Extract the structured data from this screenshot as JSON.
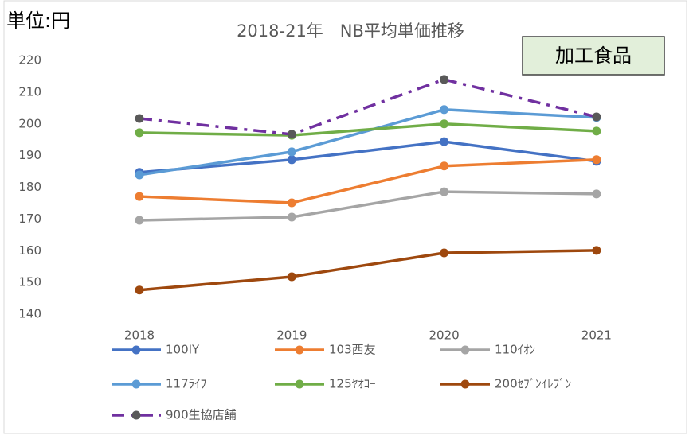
{
  "chart_data": {
    "type": "line",
    "title": "2018-21年　NB平均単価推移",
    "unit_label": "単位:円",
    "annotation": "加工食品",
    "categories": [
      "2018",
      "2019",
      "2020",
      "2021"
    ],
    "ylim": [
      140,
      220
    ],
    "yticks": [
      140,
      150,
      160,
      170,
      180,
      190,
      200,
      210,
      220
    ],
    "grid": false,
    "series": [
      {
        "name": "100IY",
        "color": "#4472c4",
        "values": [
          184.7,
          188.7,
          194.4,
          188.2
        ]
      },
      {
        "name": "103西友",
        "color": "#ed7d31",
        "values": [
          177.1,
          175.1,
          186.7,
          188.7
        ]
      },
      {
        "name": "110ｲｵﾝ",
        "color": "#a5a5a5",
        "values": [
          169.6,
          170.6,
          178.6,
          177.9
        ]
      },
      {
        "name": "117ﾗｲﾌ",
        "color": "#5b9bd5",
        "values": [
          183.9,
          191.2,
          204.5,
          202.0
        ]
      },
      {
        "name": "125ﾔｵｺｰ",
        "color": "#70ad47",
        "values": [
          197.2,
          196.4,
          200.0,
          197.7
        ]
      },
      {
        "name": "200ｾﾌﾞﾝｲﾚﾌﾞﾝ",
        "color": "#9e480e",
        "values": [
          147.6,
          151.8,
          159.3,
          160.1
        ]
      },
      {
        "name": "900生協店舗",
        "color": "#7030a0",
        "marker_color": "#595959",
        "line_style": "dashdot",
        "values": [
          201.7,
          196.7,
          214.0,
          202.2
        ]
      }
    ]
  }
}
